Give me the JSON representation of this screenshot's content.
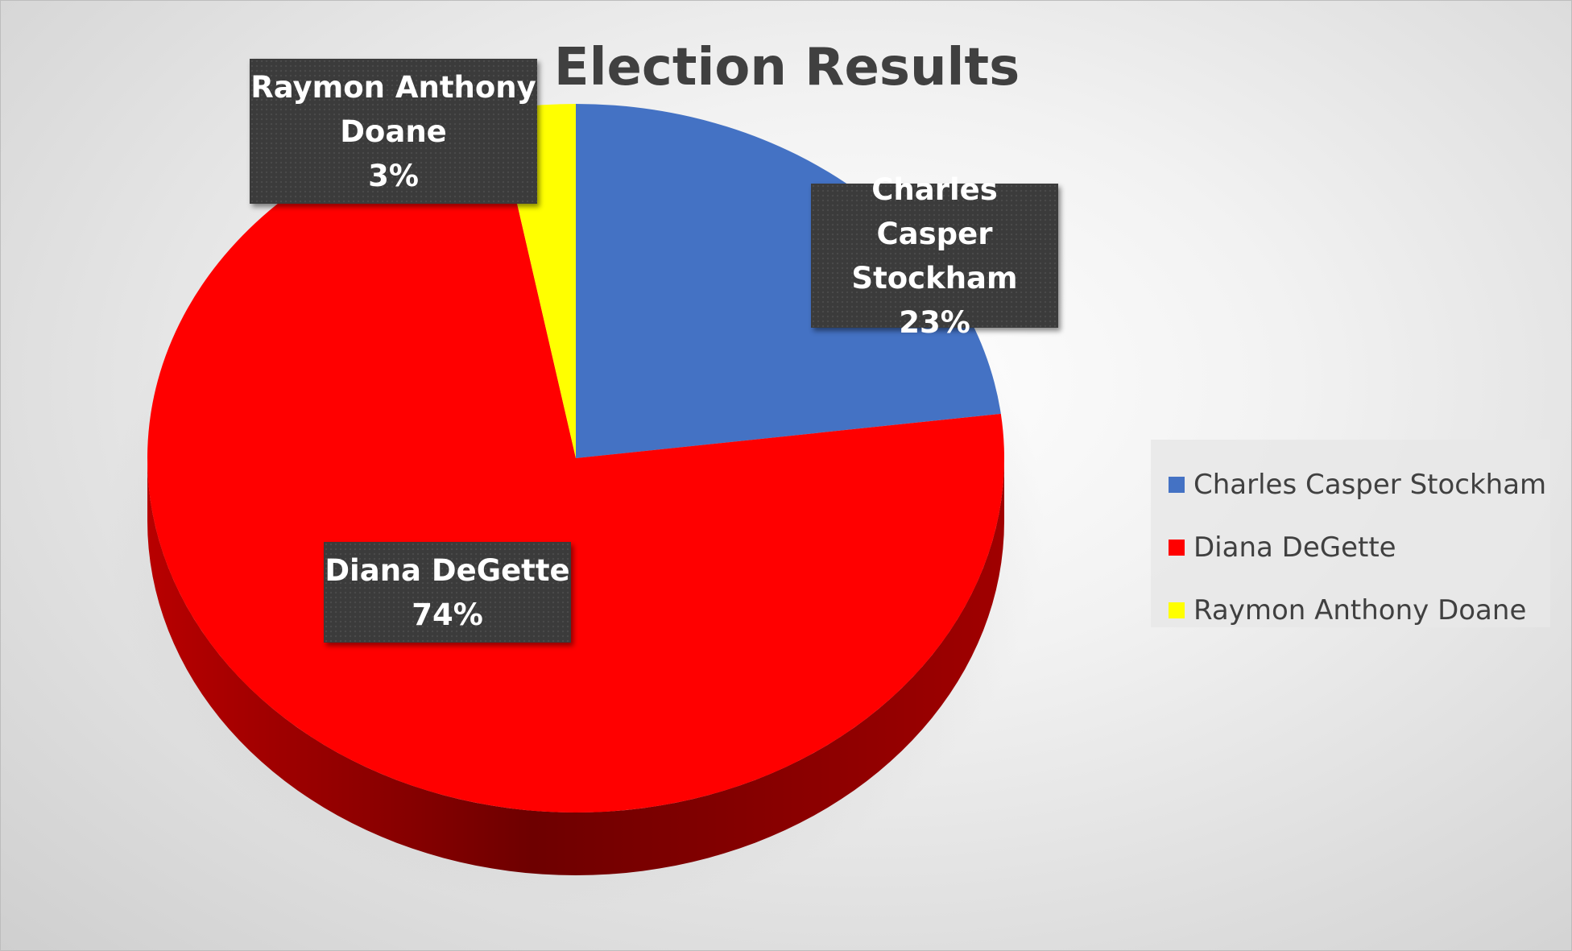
{
  "chart_data": {
    "type": "pie",
    "style": "3d",
    "title": "Election Results",
    "categories": [
      "Charles Casper Stockham",
      "Diana DeGette",
      "Raymon Anthony Doane"
    ],
    "values": [
      23,
      74,
      3
    ],
    "unit": "%",
    "colors": [
      "#4472C4",
      "#FF0000",
      "#FFFF00"
    ],
    "data_labels": [
      {
        "lines": [
          "Charles Casper",
          "Stockham",
          "23%"
        ]
      },
      {
        "lines": [
          "Diana DeGette",
          "74%"
        ]
      },
      {
        "lines": [
          "Raymon Anthony",
          "Doane",
          "3%"
        ]
      }
    ],
    "legend": {
      "placement": "right",
      "items": [
        "Charles Casper Stockham",
        "Diana DeGette",
        "Raymon Anthony Doane"
      ]
    }
  }
}
